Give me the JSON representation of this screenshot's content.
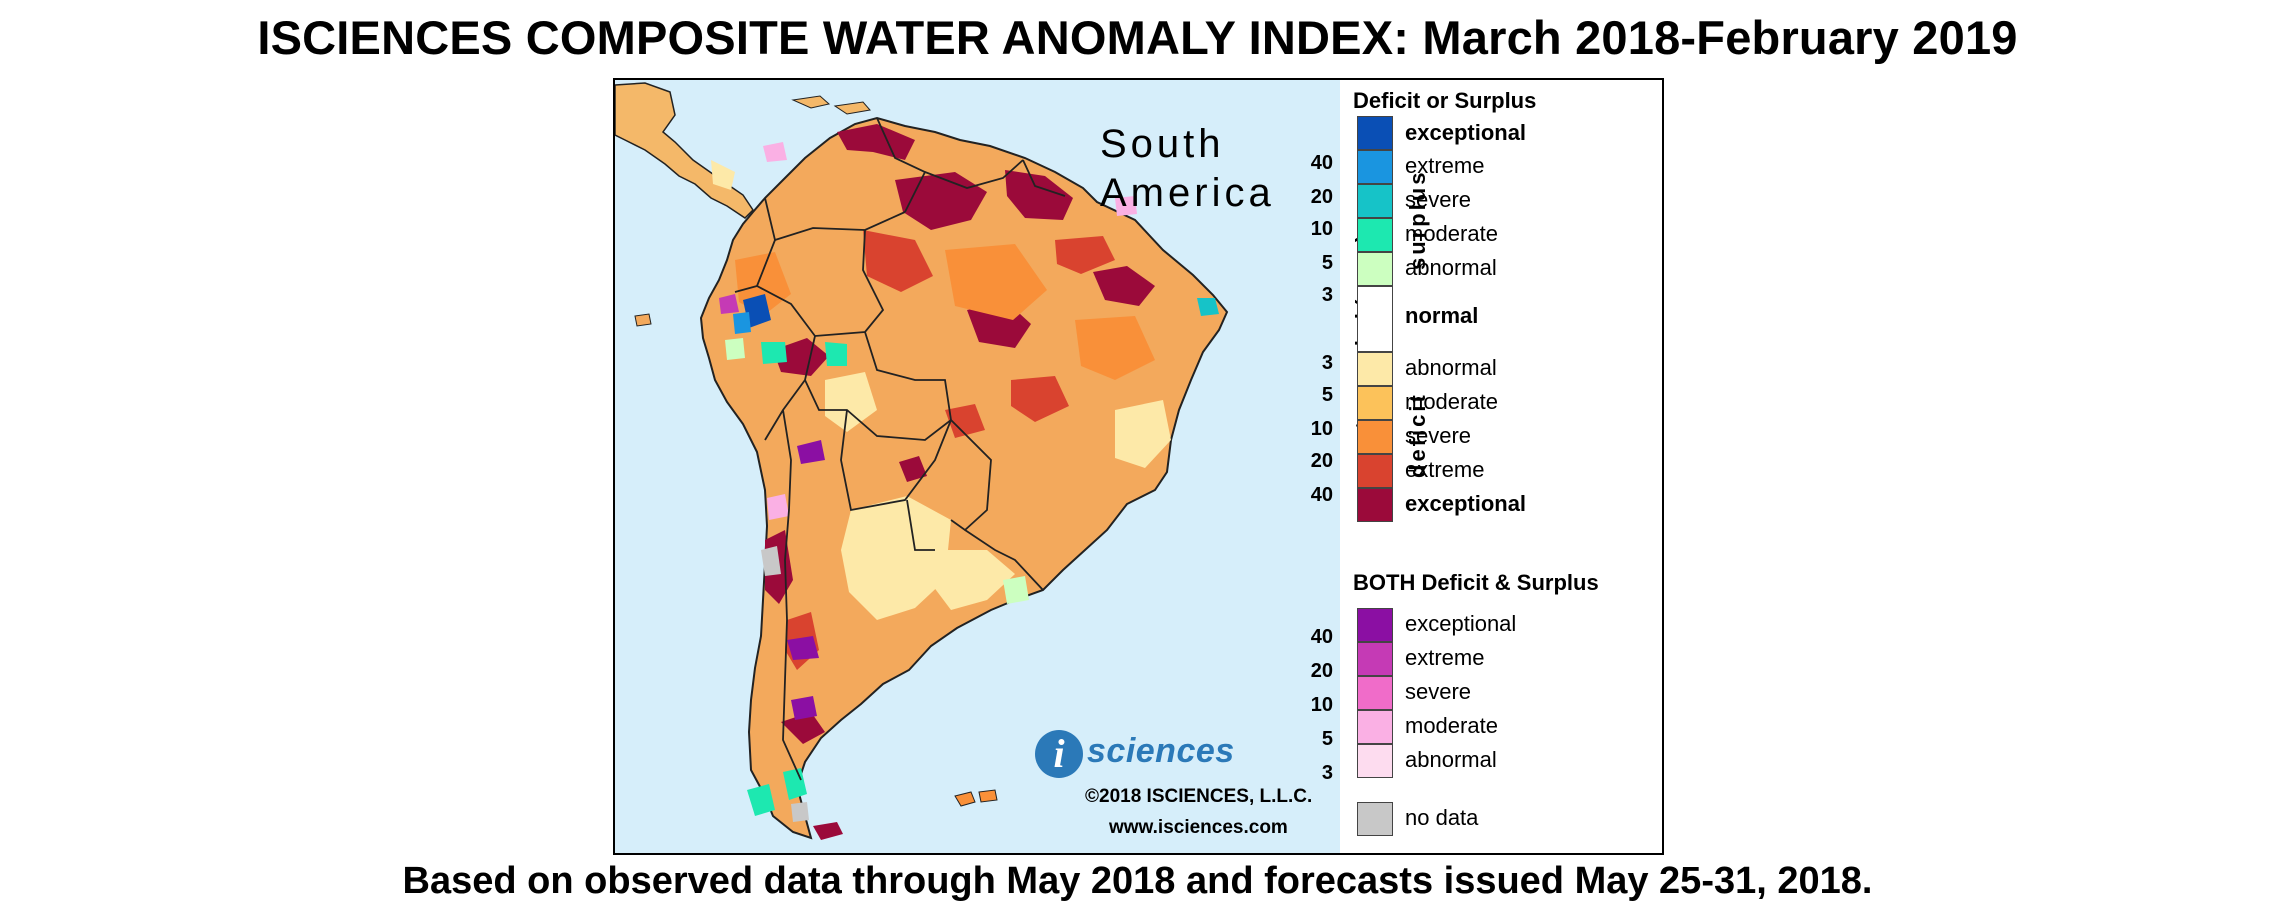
{
  "title": "ISCIENCES COMPOSITE WATER ANOMALY INDEX: March 2018-February 2019",
  "subtitle": "Based on observed data through May 2018 and forecasts issued May 25-31, 2018.",
  "map": {
    "region_line1": "South",
    "region_line2": "America",
    "logo_letter": "i",
    "logo_name": "sciences",
    "copyright": "©2018 ISCIENCES, L.L.C.",
    "website": "www.isciences.com",
    "ocean_color": "#d6eefa"
  },
  "legend": {
    "deficit_surplus_heading": "Deficit or Surplus",
    "return_period_label": "return period (years)",
    "surplus_label": "surplus",
    "deficit_label": "deficit",
    "surplus_classes": [
      {
        "label": "exceptional",
        "color": "#0a4fb5"
      },
      {
        "label": "extreme",
        "color": "#1a95e0"
      },
      {
        "label": "severe",
        "color": "#16c3c8"
      },
      {
        "label": "moderate",
        "color": "#1de8b0"
      },
      {
        "label": "abnormal",
        "color": "#ccffc0"
      }
    ],
    "surplus_ticks": [
      "40",
      "20",
      "10",
      "5",
      "3"
    ],
    "normal": {
      "label": "normal",
      "color": "#ffffff"
    },
    "deficit_classes": [
      {
        "label": "abnormal",
        "color": "#fde9a8"
      },
      {
        "label": "moderate",
        "color": "#fcc25a"
      },
      {
        "label": "severe",
        "color": "#f99039"
      },
      {
        "label": "extreme",
        "color": "#d9432f"
      },
      {
        "label": "exceptional",
        "color": "#9b0a3a"
      }
    ],
    "deficit_ticks": [
      "3",
      "5",
      "10",
      "20",
      "40"
    ],
    "both_heading": "BOTH Deficit & Surplus",
    "both_classes": [
      {
        "label": "exceptional",
        "color": "#8b0fa3"
      },
      {
        "label": "extreme",
        "color": "#c53ab5"
      },
      {
        "label": "severe",
        "color": "#f06cc9"
      },
      {
        "label": "moderate",
        "color": "#fab0e4"
      },
      {
        "label": "abnormal",
        "color": "#fddcef"
      }
    ],
    "both_ticks": [
      "40",
      "20",
      "10",
      "5",
      "3"
    ],
    "no_data": {
      "label": "no data",
      "color": "#c8c8c8"
    }
  }
}
